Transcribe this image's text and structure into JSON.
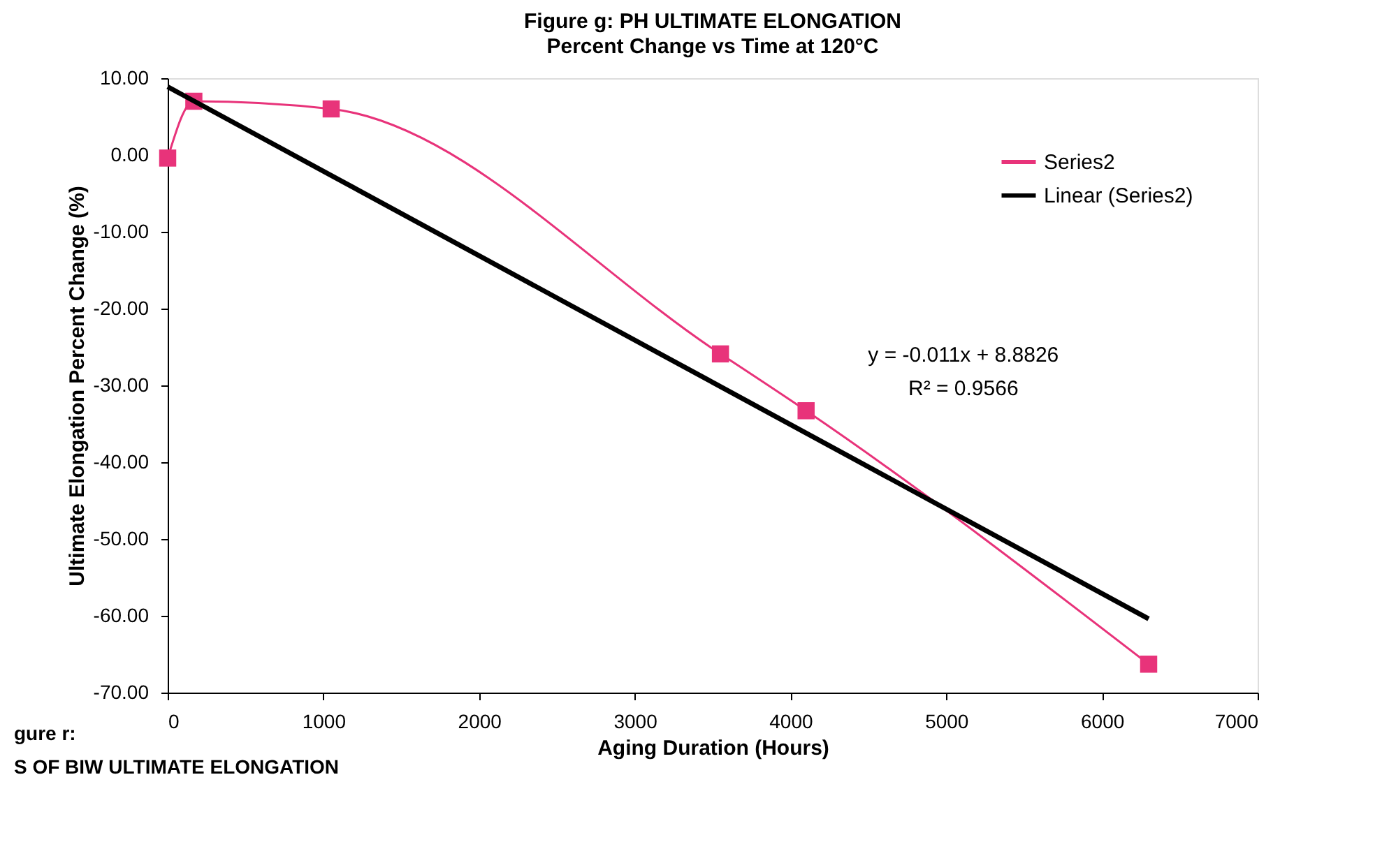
{
  "chart_data": {
    "type": "line",
    "title": "Figure g:  PH  ULTIMATE  ELONGATION",
    "subtitle": "Percent Change vs Time at 120°C",
    "xlabel": "Aging Duration   (Hours)",
    "ylabel": "Ultimate Elongation Percent Change (%)",
    "series": [
      {
        "name": "Series2",
        "color": "#e8337a",
        "x": [
          0,
          168,
          1050,
          3550,
          4100,
          6300
        ],
        "values": [
          -0.4,
          7.0,
          6.0,
          -25.9,
          -33.3,
          -66.3
        ],
        "marker": "square"
      },
      {
        "name": "Linear (Series2)",
        "color": "#000000",
        "type": "line",
        "x": [
          0,
          6300
        ],
        "values": [
          8.8826,
          -60.4
        ],
        "marker": "none"
      }
    ],
    "xlim": [
      0,
      7000
    ],
    "xticks": [
      0,
      1000,
      2000,
      3000,
      4000,
      5000,
      6000,
      7000
    ],
    "ylim": [
      -70,
      10
    ],
    "yticks": [
      {
        "value": 10,
        "label": "10.00"
      },
      {
        "value": 0,
        "label": "0.00"
      },
      {
        "value": -10,
        "label": "-10.00"
      },
      {
        "value": -20,
        "label": "-20.00"
      },
      {
        "value": -30,
        "label": "-30.00"
      },
      {
        "value": -40,
        "label": "-40.00"
      },
      {
        "value": -50,
        "label": "-50.00"
      },
      {
        "value": -60,
        "label": "-60.00"
      },
      {
        "value": -70,
        "label": "-70.00"
      }
    ],
    "grid": false,
    "legend": "top right",
    "annotations": [
      "y = -0.011x + 8.8826",
      "R² = 0.9566",
      "gure r:",
      "S OF BIW ULTIMATE ELONGATION"
    ]
  }
}
